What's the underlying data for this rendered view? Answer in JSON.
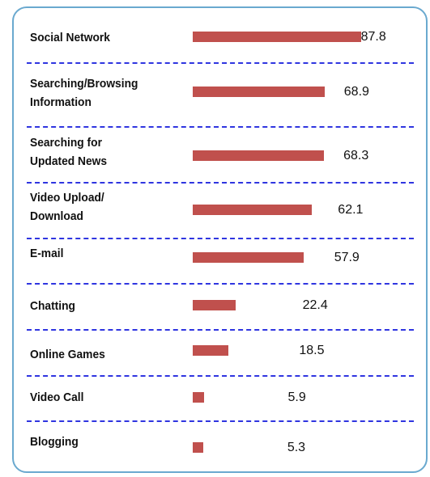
{
  "chart_data": {
    "type": "bar",
    "orientation": "horizontal",
    "categories": [
      "Social Network",
      "Searching/Browsing\nInformation",
      "Searching for\nUpdated News",
      "Video Upload/\nDownload",
      "E-mail",
      "Chatting",
      "Online Games",
      "Video Call",
      "Blogging"
    ],
    "values": [
      87.8,
      68.9,
      68.3,
      62.1,
      57.9,
      22.4,
      18.5,
      5.9,
      5.3
    ],
    "color": "#c0504d"
  }
}
